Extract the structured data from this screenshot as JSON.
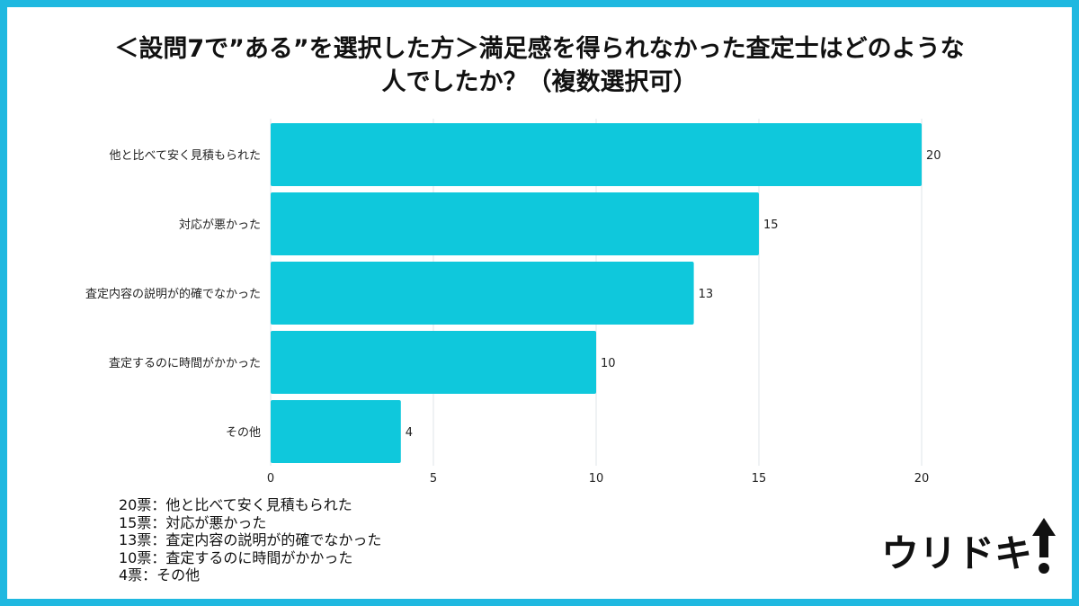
{
  "title": {
    "line1": "＜設問7で”ある”を選択した方＞満足感を得られなかった査定士はどのような",
    "line2": "人でしたか？（複数選択可）"
  },
  "chart_data": {
    "type": "bar",
    "orientation": "horizontal",
    "categories": [
      "他と比べて安く見積もられた",
      "対応が悪かった",
      "査定内容の説明が的確でなかった",
      "査定するのに時間がかかった",
      "その他"
    ],
    "values": [
      20,
      15,
      13,
      10,
      4
    ],
    "xlim": [
      0,
      20
    ],
    "xticks": [
      0,
      5,
      10,
      15,
      20
    ],
    "grid": true,
    "bar_color": "#0fc8dc"
  },
  "notes": [
    "20票：他と比べて安く見積もられた",
    "15票：対応が悪かった",
    "13票：査定内容の説明が的確でなかった",
    "10票：査定するのに時間がかかった",
    "4票：その他"
  ],
  "logo": {
    "text": "ウリドキ",
    "icon": "up-arrow-icon"
  },
  "colors": {
    "border": "#1fb8e0",
    "bar": "#0fc8dc",
    "text": "#111111"
  }
}
